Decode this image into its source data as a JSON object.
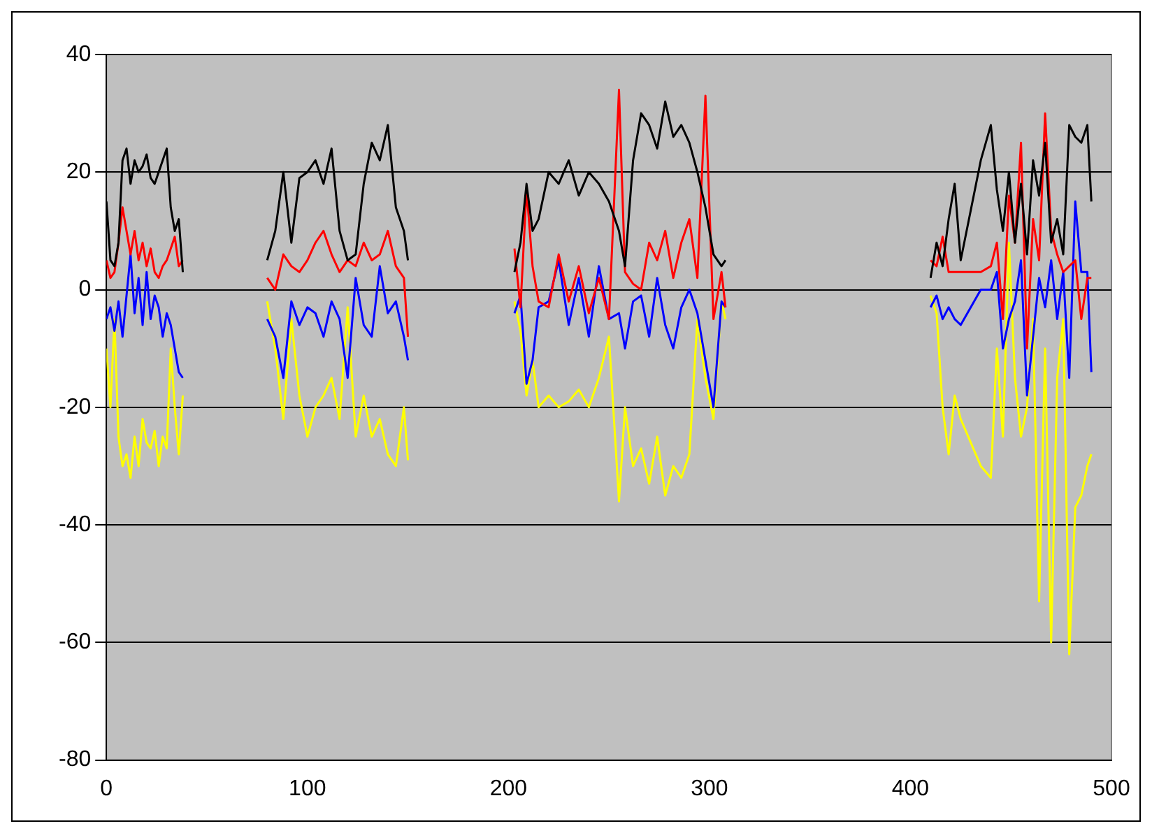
{
  "chart_data": {
    "type": "line",
    "x": [
      0,
      2,
      4,
      6,
      8,
      10,
      12,
      14,
      16,
      18,
      20,
      22,
      24,
      26,
      28,
      30,
      32,
      34,
      36,
      38,
      60,
      80,
      84,
      88,
      92,
      96,
      100,
      104,
      108,
      112,
      116,
      120,
      124,
      128,
      132,
      136,
      140,
      144,
      148,
      150,
      175,
      203,
      206,
      209,
      212,
      215,
      220,
      225,
      230,
      235,
      240,
      245,
      250,
      255,
      258,
      262,
      266,
      270,
      274,
      278,
      282,
      286,
      290,
      294,
      298,
      302,
      306,
      308,
      360,
      410,
      413,
      416,
      419,
      422,
      425,
      435,
      440,
      443,
      446,
      449,
      452,
      455,
      458,
      461,
      464,
      467,
      470,
      473,
      476,
      479,
      482,
      485,
      488,
      490
    ],
    "series": [
      {
        "color": "#000000",
        "values": [
          15,
          5,
          4,
          8,
          22,
          24,
          18,
          22,
          20,
          21,
          23,
          19,
          18,
          20,
          22,
          24,
          14,
          10,
          12,
          3,
          null,
          5,
          10,
          20,
          8,
          19,
          20,
          22,
          18,
          24,
          10,
          5,
          6,
          18,
          25,
          22,
          28,
          14,
          10,
          5,
          null,
          3,
          8,
          18,
          10,
          12,
          20,
          18,
          22,
          16,
          20,
          18,
          15,
          10,
          4,
          22,
          30,
          28,
          24,
          32,
          26,
          28,
          25,
          20,
          14,
          6,
          4,
          5,
          null,
          2,
          8,
          4,
          12,
          18,
          5,
          22,
          28,
          17,
          10,
          20,
          8,
          18,
          6,
          22,
          16,
          25,
          8,
          12,
          6,
          28,
          26,
          25,
          28,
          15
        ]
      },
      {
        "color": "#ff0000",
        "values": [
          5,
          2,
          3,
          8,
          14,
          10,
          6,
          10,
          5,
          8,
          4,
          7,
          3,
          2,
          4,
          5,
          7,
          9,
          4,
          5,
          null,
          2,
          0,
          6,
          4,
          3,
          5,
          8,
          10,
          6,
          3,
          5,
          4,
          8,
          5,
          6,
          10,
          4,
          2,
          -8,
          null,
          7,
          -3,
          17,
          4,
          -2,
          -3,
          6,
          -2,
          4,
          -4,
          2,
          -5,
          34,
          3,
          1,
          0,
          8,
          5,
          10,
          2,
          8,
          12,
          2,
          33,
          -5,
          3,
          -3,
          null,
          5,
          4,
          9,
          3,
          3,
          3,
          3,
          4,
          8,
          -5,
          16,
          8,
          25,
          -10,
          12,
          5,
          30,
          10,
          6,
          3,
          4,
          5,
          -5,
          2,
          2
        ]
      },
      {
        "color": "#0000ff",
        "values": [
          -5,
          -3,
          -7,
          -2,
          -8,
          -1,
          6,
          -4,
          2,
          -6,
          3,
          -5,
          -1,
          -3,
          -8,
          -4,
          -6,
          -10,
          -14,
          -15,
          null,
          -5,
          -8,
          -15,
          -2,
          -6,
          -3,
          -4,
          -8,
          -2,
          -5,
          -15,
          2,
          -6,
          -8,
          4,
          -4,
          -2,
          -8,
          -12,
          null,
          -4,
          -1,
          -16,
          -12,
          -3,
          -2,
          5,
          -6,
          2,
          -8,
          4,
          -5,
          -4,
          -10,
          -2,
          -1,
          -8,
          2,
          -6,
          -10,
          -3,
          0,
          -4,
          -12,
          -20,
          -2,
          -3,
          null,
          -3,
          -1,
          -5,
          -3,
          -5,
          -6,
          0,
          0,
          3,
          -10,
          -5,
          -2,
          5,
          -18,
          -8,
          2,
          -3,
          5,
          -5,
          3,
          -15,
          15,
          3,
          3,
          -14
        ]
      },
      {
        "color": "#ffff00",
        "values": [
          -10,
          -20,
          -5,
          -25,
          -30,
          -28,
          -32,
          -25,
          -30,
          -22,
          -26,
          -27,
          -24,
          -30,
          -25,
          -27,
          -10,
          -20,
          -28,
          -18,
          null,
          -2,
          -10,
          -22,
          -5,
          -18,
          -25,
          -20,
          -18,
          -15,
          -22,
          -3,
          -25,
          -18,
          -25,
          -22,
          -28,
          -30,
          -20,
          -29,
          null,
          -2,
          -7,
          -18,
          -12,
          -20,
          -18,
          -20,
          -19,
          -17,
          -20,
          -15,
          -8,
          -36,
          -20,
          -30,
          -27,
          -33,
          -25,
          -35,
          -30,
          -32,
          -28,
          -5,
          -15,
          -22,
          -2,
          -5,
          null,
          -1,
          -4,
          -20,
          -28,
          -18,
          -22,
          -30,
          -32,
          -10,
          -25,
          8,
          -15,
          -25,
          -20,
          -5,
          -53,
          -10,
          -60,
          -15,
          -5,
          -62,
          -37,
          -35,
          -30,
          -28
        ]
      }
    ],
    "xlim": [
      0,
      500
    ],
    "xticks": [
      0,
      100,
      200,
      300,
      400,
      500
    ],
    "ylim": [
      -80,
      40
    ],
    "yticks": [
      -80,
      -60,
      -40,
      -20,
      0,
      20,
      40
    ],
    "grid": "y",
    "legend": false,
    "marker": "none",
    "line_style": "solid"
  }
}
